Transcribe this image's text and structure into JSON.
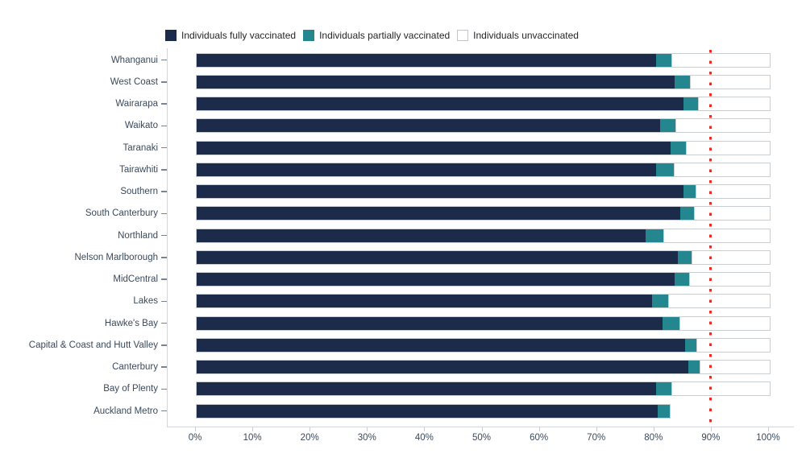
{
  "legend": {
    "items": [
      {
        "label": "Individuals fully vaccinated",
        "color": "#1c2b4a",
        "border": "#1c2b4a"
      },
      {
        "label": "Individuals partially vaccinated",
        "color": "#24878f",
        "border": "#24878f"
      },
      {
        "label": "Individuals unvaccinated",
        "color": "#ffffff",
        "border": "#c0c6cb"
      }
    ]
  },
  "chart_data": {
    "type": "bar",
    "orientation": "horizontal",
    "stacked": true,
    "grid": false,
    "legend_position": "top",
    "xlim": [
      0,
      100
    ],
    "x_ticks": [
      "0%",
      "10%",
      "20%",
      "30%",
      "40%",
      "50%",
      "60%",
      "70%",
      "80%",
      "90%",
      "100%"
    ],
    "categories": [
      "Whanganui",
      "West Coast",
      "Wairarapa",
      "Waikato",
      "Taranaki",
      "Tairawhiti",
      "Southern",
      "South Canterbury",
      "Northland",
      "Nelson Marlborough",
      "MidCentral",
      "Lakes",
      "Hawke's Bay",
      "Capital & Coast and Hutt Valley",
      "Canterbury",
      "Bay of Plenty",
      "Auckland Metro"
    ],
    "series": [
      {
        "name": "Individuals fully vaccinated",
        "color": "#1c2b4a",
        "values": [
          80.2,
          83.4,
          84.9,
          80.9,
          82.7,
          80.1,
          84.9,
          84.4,
          78.3,
          83.9,
          83.4,
          79.4,
          81.3,
          85.3,
          85.8,
          80.1,
          80.5
        ]
      },
      {
        "name": "Individuals partially vaccinated",
        "color": "#24878f",
        "values": [
          2.7,
          2.7,
          2.6,
          2.7,
          2.7,
          3.2,
          2.2,
          2.4,
          3.2,
          2.5,
          2.6,
          2.9,
          3.0,
          1.9,
          1.9,
          2.8,
          2.1
        ]
      },
      {
        "name": "Individuals unvaccinated",
        "color": "#ffffff",
        "values": [
          17.1,
          13.9,
          12.5,
          16.4,
          14.6,
          16.7,
          12.9,
          13.2,
          18.5,
          13.6,
          14.0,
          17.7,
          15.7,
          12.8,
          12.3,
          17.1,
          0
        ]
      }
    ],
    "reference_line": {
      "value": 90,
      "color": "#ee2a24",
      "style": "dotted",
      "orientation": "vertical"
    },
    "notes": "Auckland Metro bar is drawn without an unvaccinated (white) segment"
  }
}
